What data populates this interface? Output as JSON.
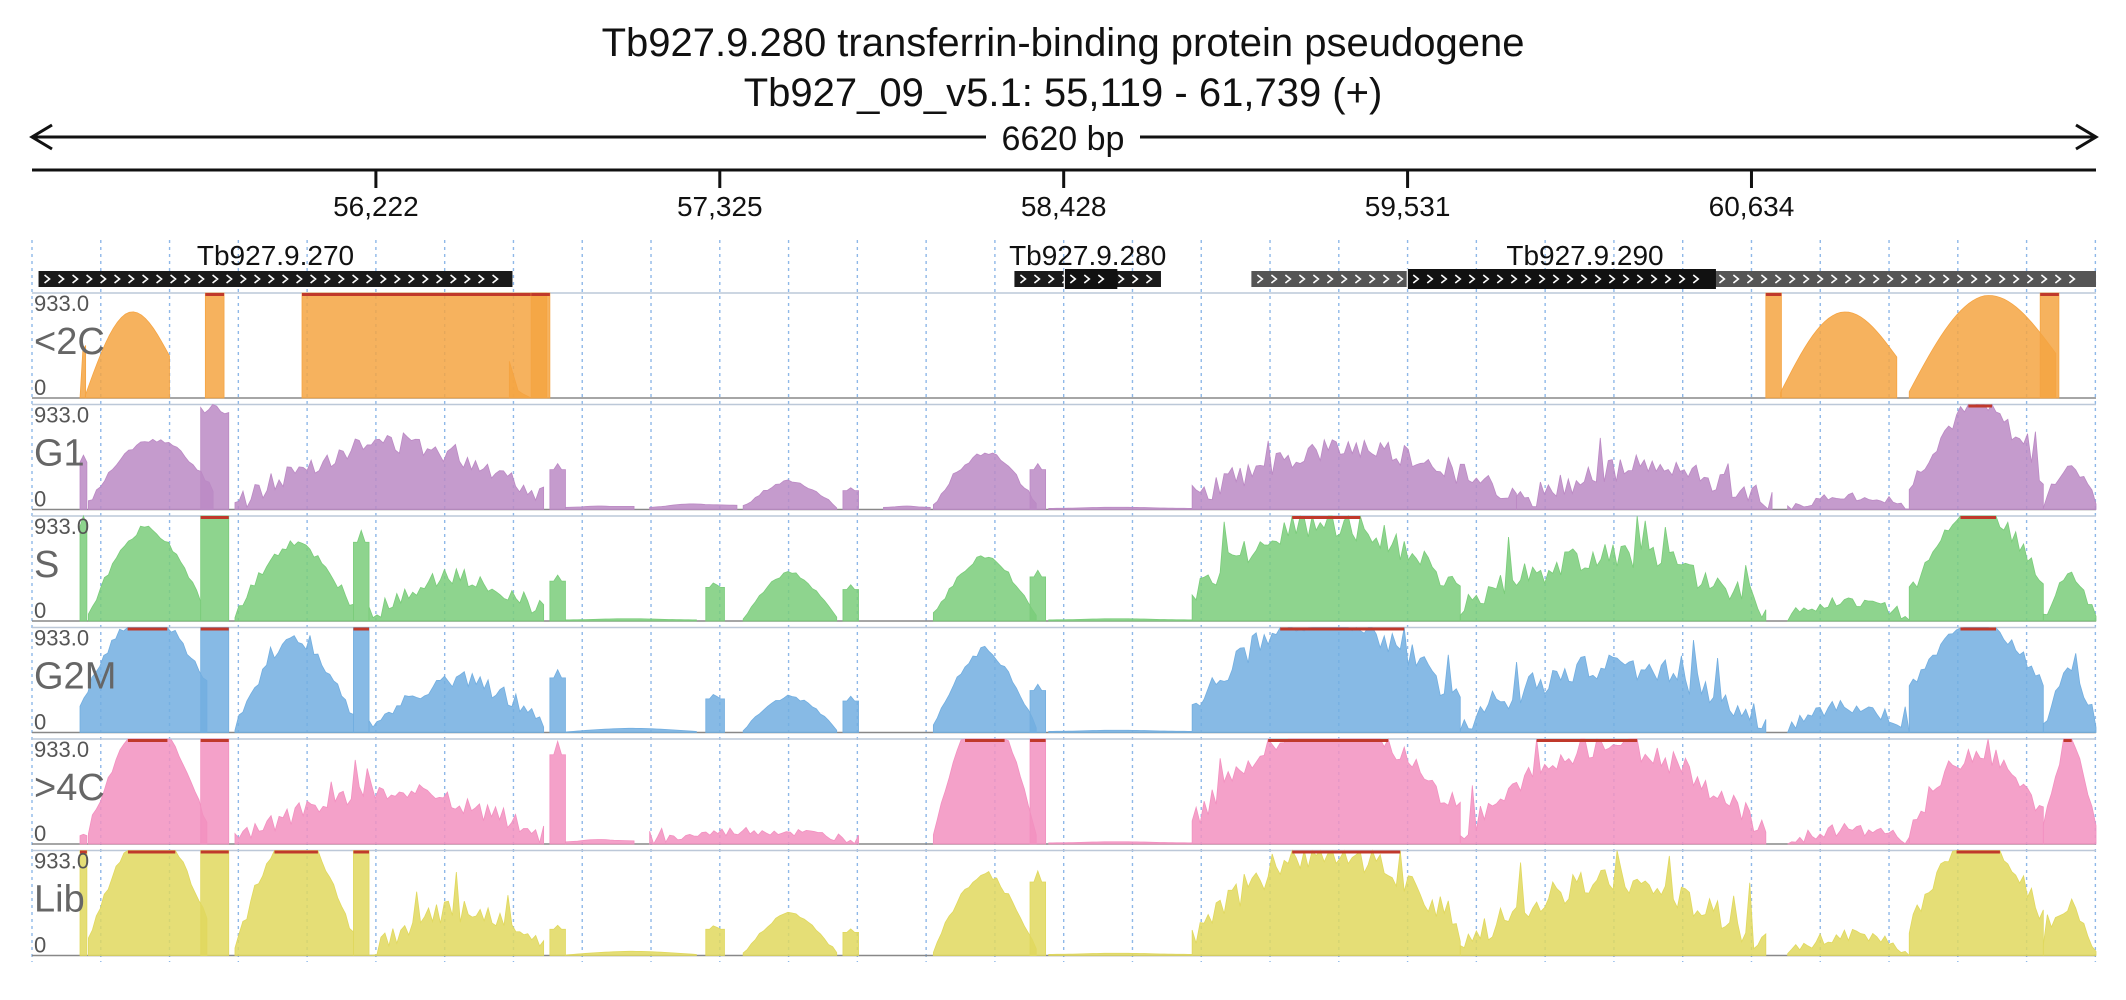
{
  "header": {
    "gene_title": "Tb927.9.280  transferrin-binding protein  pseudogene",
    "locus": "Tb927_09_v5.1: 55,119 - 61,739 (+)"
  },
  "ruler": {
    "span_label": "6620 bp"
  },
  "chart_data": {
    "type": "area",
    "region": {
      "chromosome": "Tb927_09_v5.1",
      "start": 55119,
      "end": 61739,
      "strand": "+"
    },
    "xlim": [
      55119,
      61739
    ],
    "x_ticks": [
      {
        "pos": 56222,
        "label": "56,222"
      },
      {
        "pos": 57325,
        "label": "57,325"
      },
      {
        "pos": 58428,
        "label": "58,428"
      },
      {
        "pos": 59531,
        "label": "59,531"
      },
      {
        "pos": 60634,
        "label": "60,634"
      }
    ],
    "genes": [
      {
        "name": "Tb927.9.270",
        "start": 55140,
        "end": 56660,
        "strand": "+",
        "style": "dark"
      },
      {
        "name": "Tb927.9.280",
        "start": 58270,
        "end": 58740,
        "strand": "+",
        "style": "dark"
      },
      {
        "name": "Tb927.9.290",
        "start": 59030,
        "end": 61739,
        "strand": "+",
        "style": "grey"
      }
    ],
    "gene_subfeatures": [
      {
        "start": 58430,
        "end": 58600,
        "style": "dark"
      },
      {
        "start": 59530,
        "end": 60520,
        "style": "dark"
      }
    ],
    "series": [
      {
        "name": "<2C",
        "color": "#f5a442",
        "ymin": "0",
        "ymax": "933.0",
        "segments": [
          [
            55273,
            55291,
            0,
            0.05,
            1.0,
            0.8,
            0.0,
            0
          ],
          [
            55290,
            55560,
            0.05,
            0.45,
            0.8,
            0.72,
            0.0,
            1
          ],
          [
            55675,
            55735,
            1.0,
            1.0,
            1.0,
            0.0,
            0.0,
            2
          ],
          [
            55985,
            56770,
            1.0,
            1.0,
            1.0,
            0.0,
            0.0,
            3
          ],
          [
            56650,
            56720,
            0.35,
            0.0,
            0.0,
            0.0,
            0.0,
            4
          ],
          [
            56720,
            56780,
            1.0,
            1.0,
            1.0,
            0.0,
            0.0,
            5
          ],
          [
            60727,
            61100,
            0.1,
            0.45,
            0.78,
            0.72,
            0.0,
            6
          ],
          [
            61140,
            61610,
            0.12,
            0.55,
            0.85,
            0.84,
            0.0,
            7
          ],
          [
            60680,
            60730,
            1.0,
            1.0,
            1.0,
            0.0,
            0.0,
            8
          ],
          [
            61560,
            61620,
            1.0,
            1.0,
            1.0,
            0.0,
            0.0,
            9
          ]
        ]
      },
      {
        "name": "G1",
        "color": "#bb89c4",
        "ymin": "0",
        "ymax": "933.0",
        "segments": [
          [
            55273,
            55295,
            0.45,
            0.45,
            0.45,
            0.0,
            0.0,
            10
          ],
          [
            55300,
            55700,
            0.12,
            0.45,
            0.4,
            0.45,
            0.1,
            11
          ],
          [
            55660,
            55750,
            0.95,
            0.9,
            0.9,
            0.0,
            0.15,
            12
          ],
          [
            55770,
            56760,
            0.1,
            0.42,
            0.3,
            0.45,
            0.35,
            13
          ],
          [
            56780,
            56830,
            0.38,
            0.38,
            0.38,
            0.0,
            0.0,
            14
          ],
          [
            56830,
            57050,
            0.02,
            0.03,
            0.03,
            0.0,
            0.0,
            15
          ],
          [
            57100,
            57380,
            0.02,
            0.05,
            0.04,
            0.0,
            0.0,
            16
          ],
          [
            57400,
            57700,
            0.05,
            0.2,
            0.05,
            0.15,
            0.05,
            17
          ],
          [
            57720,
            57770,
            0.18,
            0.18,
            0.18,
            0.0,
            0.0,
            18
          ],
          [
            57850,
            58000,
            0.02,
            0.03,
            0.02,
            0.0,
            0.0,
            19
          ],
          [
            58010,
            58340,
            0.1,
            0.38,
            0.1,
            0.35,
            0.1,
            20
          ],
          [
            58320,
            58370,
            0.38,
            0.38,
            0.38,
            0.0,
            0.0,
            21
          ],
          [
            58380,
            58840,
            0.01,
            0.02,
            0.01,
            0.0,
            0.0,
            22
          ],
          [
            58840,
            59880,
            0.25,
            0.4,
            0.25,
            0.35,
            0.4,
            23
          ],
          [
            59880,
            60700,
            0.12,
            0.28,
            0.12,
            0.25,
            0.4,
            24
          ],
          [
            60750,
            61140,
            0.05,
            0.1,
            0.08,
            0.05,
            0.15,
            25
          ],
          [
            61140,
            61570,
            0.4,
            0.85,
            0.6,
            0.3,
            0.3,
            26
          ],
          [
            61570,
            61739,
            0.08,
            0.35,
            0.1,
            0.2,
            0.2,
            27
          ]
        ]
      },
      {
        "name": "S",
        "color": "#7acc7a",
        "ymin": "0",
        "ymax": "933.0",
        "segments": [
          [
            55273,
            55295,
            0.9,
            0.9,
            0.9,
            0.0,
            0.0,
            30
          ],
          [
            55300,
            55660,
            0.12,
            0.62,
            0.4,
            0.55,
            0.1,
            31
          ],
          [
            55660,
            55750,
            1.0,
            1.0,
            1.0,
            0.0,
            0.0,
            32
          ],
          [
            55770,
            56150,
            0.1,
            0.52,
            0.25,
            0.45,
            0.15,
            33
          ],
          [
            56150,
            56200,
            0.75,
            0.75,
            0.75,
            0.0,
            0.0,
            34
          ],
          [
            56200,
            56760,
            0.1,
            0.3,
            0.18,
            0.25,
            0.3,
            35
          ],
          [
            56780,
            56830,
            0.38,
            0.38,
            0.38,
            0.0,
            0.0,
            36
          ],
          [
            56830,
            57250,
            0.01,
            0.02,
            0.01,
            0.0,
            0.0,
            37
          ],
          [
            57280,
            57340,
            0.32,
            0.32,
            0.32,
            0.0,
            0.0,
            38
          ],
          [
            57400,
            57700,
            0.05,
            0.32,
            0.05,
            0.3,
            0.05,
            39
          ],
          [
            57720,
            57770,
            0.3,
            0.3,
            0.3,
            0.0,
            0.0,
            40
          ],
          [
            58010,
            58340,
            0.1,
            0.42,
            0.1,
            0.4,
            0.1,
            41
          ],
          [
            58320,
            58370,
            0.42,
            0.42,
            0.42,
            0.0,
            0.0,
            42
          ],
          [
            58380,
            58840,
            0.01,
            0.02,
            0.01,
            0.0,
            0.0,
            43
          ],
          [
            58840,
            59700,
            0.5,
            0.75,
            0.55,
            0.4,
            0.45,
            44
          ],
          [
            59700,
            60680,
            0.2,
            0.45,
            0.25,
            0.4,
            0.45,
            45
          ],
          [
            60750,
            61140,
            0.08,
            0.15,
            0.1,
            0.1,
            0.2,
            46
          ],
          [
            61140,
            61570,
            0.5,
            0.95,
            0.7,
            0.3,
            0.25,
            47
          ],
          [
            61570,
            61739,
            0.05,
            0.35,
            0.1,
            0.2,
            0.2,
            48
          ]
        ]
      },
      {
        "name": "G2M",
        "color": "#72aee0",
        "ymin": "0",
        "ymax": "933.0",
        "segments": [
          [
            55273,
            55680,
            0.5,
            1.0,
            0.9,
            0.3,
            0.15,
            50
          ],
          [
            55660,
            55750,
            1.0,
            1.0,
            1.0,
            0.0,
            0.0,
            51
          ],
          [
            55770,
            56150,
            0.1,
            0.62,
            0.3,
            0.55,
            0.15,
            52
          ],
          [
            56150,
            56200,
            1.0,
            1.0,
            1.0,
            0.0,
            0.0,
            53
          ],
          [
            56200,
            56760,
            0.1,
            0.35,
            0.2,
            0.3,
            0.3,
            54
          ],
          [
            56780,
            56830,
            0.52,
            0.52,
            0.52,
            0.0,
            0.0,
            55
          ],
          [
            56830,
            57250,
            0.01,
            0.03,
            0.02,
            0.02,
            0.0,
            56
          ],
          [
            57280,
            57340,
            0.32,
            0.32,
            0.32,
            0.0,
            0.0,
            57
          ],
          [
            57400,
            57700,
            0.05,
            0.25,
            0.05,
            0.2,
            0.05,
            58
          ],
          [
            57720,
            57770,
            0.3,
            0.3,
            0.3,
            0.0,
            0.0,
            59
          ],
          [
            58010,
            58340,
            0.1,
            0.55,
            0.1,
            0.5,
            0.1,
            60
          ],
          [
            58320,
            58370,
            0.4,
            0.4,
            0.4,
            0.0,
            0.0,
            61
          ],
          [
            58380,
            58840,
            0.01,
            0.02,
            0.01,
            0.0,
            0.0,
            62
          ],
          [
            58840,
            59700,
            0.6,
            0.95,
            0.55,
            0.4,
            0.45,
            63
          ],
          [
            59700,
            60680,
            0.2,
            0.45,
            0.25,
            0.4,
            0.45,
            64
          ],
          [
            60750,
            61140,
            0.1,
            0.2,
            0.1,
            0.1,
            0.25,
            65
          ],
          [
            61140,
            61570,
            0.8,
            1.0,
            0.9,
            0.1,
            0.2,
            66
          ],
          [
            61570,
            61739,
            0.1,
            0.45,
            0.2,
            0.3,
            0.25,
            67
          ]
        ]
      },
      {
        "name": ">4C",
        "color": "#f290c0",
        "ymin": "0",
        "ymax": "933.0",
        "segments": [
          [
            55273,
            55295,
            0.08,
            0.08,
            0.08,
            0.0,
            0.0,
            70
          ],
          [
            55300,
            55680,
            0.25,
            0.92,
            0.4,
            0.6,
            0.1,
            71
          ],
          [
            55660,
            55750,
            1.0,
            1.0,
            1.0,
            0.0,
            0.0,
            72
          ],
          [
            55770,
            56760,
            0.1,
            0.38,
            0.2,
            0.25,
            0.35,
            73
          ],
          [
            56780,
            56830,
            0.85,
            0.85,
            0.85,
            0.0,
            0.0,
            74
          ],
          [
            56830,
            57050,
            0.02,
            0.04,
            0.03,
            0.0,
            0.0,
            75
          ],
          [
            57100,
            57770,
            0.05,
            0.1,
            0.08,
            0.05,
            0.15,
            76
          ],
          [
            58010,
            58340,
            0.2,
            1.0,
            0.2,
            0.8,
            0.05,
            77
          ],
          [
            58320,
            58370,
            1.0,
            1.0,
            1.0,
            0.0,
            0.0,
            78
          ],
          [
            58380,
            58840,
            0.01,
            0.02,
            0.01,
            0.0,
            0.0,
            79
          ],
          [
            58840,
            59700,
            0.4,
            1.0,
            0.6,
            0.5,
            0.4,
            80
          ],
          [
            59700,
            60680,
            0.2,
            0.72,
            0.25,
            0.5,
            0.4,
            81
          ],
          [
            60750,
            61140,
            0.05,
            0.12,
            0.08,
            0.05,
            0.2,
            82
          ],
          [
            61140,
            61570,
            0.3,
            0.75,
            0.5,
            0.3,
            0.35,
            83
          ],
          [
            61570,
            61739,
            0.2,
            1.0,
            0.3,
            0.2,
            0.3,
            84
          ]
        ]
      },
      {
        "name": "Lib",
        "color": "#e0d85e",
        "ymin": "0",
        "ymax": "933.0",
        "segments": [
          [
            55273,
            55295,
            1.0,
            1.0,
            1.0,
            0.0,
            0.0,
            90
          ],
          [
            55300,
            55680,
            0.3,
            1.0,
            0.7,
            0.55,
            0.1,
            91
          ],
          [
            55660,
            55750,
            1.0,
            1.0,
            1.0,
            0.0,
            0.0,
            92
          ],
          [
            55770,
            56150,
            0.15,
            0.92,
            0.4,
            0.6,
            0.15,
            93
          ],
          [
            56150,
            56200,
            1.0,
            1.0,
            1.0,
            0.0,
            0.0,
            94
          ],
          [
            56200,
            56760,
            0.1,
            0.3,
            0.15,
            0.25,
            0.35,
            95
          ],
          [
            56780,
            56830,
            0.25,
            0.25,
            0.25,
            0.0,
            0.0,
            96
          ],
          [
            56830,
            57250,
            0.01,
            0.03,
            0.02,
            0.02,
            0.0,
            97
          ],
          [
            57280,
            57340,
            0.25,
            0.25,
            0.25,
            0.0,
            0.0,
            98
          ],
          [
            57400,
            57700,
            0.05,
            0.28,
            0.05,
            0.25,
            0.05,
            99
          ],
          [
            57720,
            57770,
            0.22,
            0.22,
            0.22,
            0.0,
            0.0,
            100
          ],
          [
            58010,
            58340,
            0.1,
            0.55,
            0.1,
            0.5,
            0.1,
            101
          ],
          [
            58320,
            58370,
            0.7,
            0.7,
            0.7,
            0.0,
            0.0,
            102
          ],
          [
            58380,
            58840,
            0.01,
            0.02,
            0.01,
            0.0,
            0.0,
            103
          ],
          [
            58840,
            59700,
            0.4,
            0.8,
            0.55,
            0.45,
            0.5,
            104
          ],
          [
            59700,
            60680,
            0.2,
            0.5,
            0.25,
            0.45,
            0.45,
            105
          ],
          [
            60750,
            61140,
            0.08,
            0.15,
            0.1,
            0.1,
            0.2,
            106
          ],
          [
            61140,
            61570,
            0.55,
            1.0,
            0.7,
            0.3,
            0.3,
            107
          ],
          [
            61570,
            61739,
            0.05,
            0.35,
            0.1,
            0.25,
            0.25,
            108
          ]
        ]
      }
    ]
  }
}
